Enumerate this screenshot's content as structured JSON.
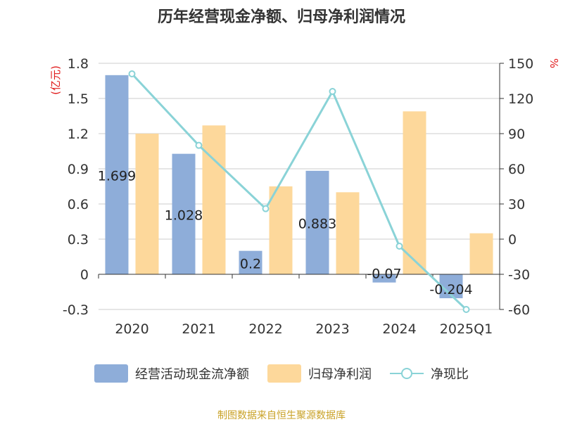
{
  "title": "历年经营现金净额、归母净利润情况",
  "source": "制图数据来自恒生聚源数据库",
  "colors": {
    "cash": "#8eadd9",
    "profit": "#fdd89b",
    "ratio": "#8ad3d7",
    "unit": "#e0191a"
  },
  "chart_data": {
    "type": "bar",
    "categories": [
      "2020",
      "2021",
      "2022",
      "2023",
      "2024",
      "2025Q1"
    ],
    "y_left": {
      "label": "(亿元)",
      "range": [
        -0.3,
        1.8
      ],
      "ticks": [
        "1.8",
        "1.5",
        "1.2",
        "0.9",
        "0.6",
        "0.3",
        "0",
        "-0.3"
      ]
    },
    "y_right": {
      "label": "%",
      "range": [
        -60,
        150
      ],
      "ticks": [
        "150",
        "120",
        "90",
        "60",
        "30",
        "0",
        "-30",
        "-60"
      ]
    },
    "grid": true,
    "legend_position": "bottom",
    "series": [
      {
        "name": "经营活动现金流净额",
        "type": "bar",
        "axis": "left",
        "values": [
          1.699,
          1.028,
          0.2,
          0.883,
          -0.07,
          -0.204
        ],
        "labels": [
          "1.699",
          "1.028",
          "0.2",
          "0.883",
          "-0.07",
          "-0.204"
        ]
      },
      {
        "name": "归母净利润",
        "type": "bar",
        "axis": "left",
        "values": [
          1.2,
          1.27,
          0.75,
          0.7,
          1.39,
          0.35
        ]
      },
      {
        "name": "净现比",
        "type": "line",
        "axis": "right",
        "values": [
          141,
          80,
          26,
          126,
          -6,
          -60
        ]
      }
    ]
  }
}
